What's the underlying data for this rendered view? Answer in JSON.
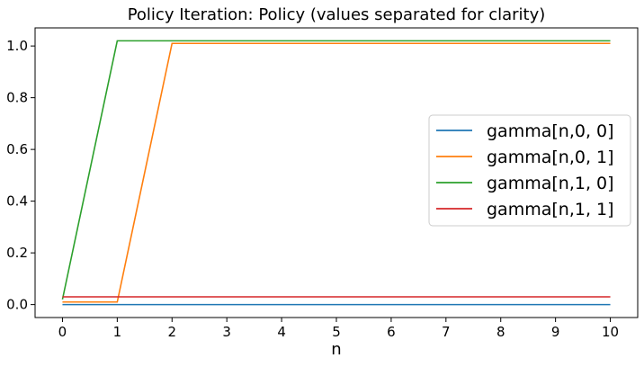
{
  "chart_data": {
    "type": "line",
    "title": "Policy Iteration: Policy (values separated for clarity)",
    "xlabel": "n",
    "ylabel": "",
    "xlim": [
      -0.5,
      10.5
    ],
    "ylim": [
      -0.05,
      1.07
    ],
    "xticks": [
      0,
      1,
      2,
      3,
      4,
      5,
      6,
      7,
      8,
      9,
      10
    ],
    "yticks": [
      0.0,
      0.2,
      0.4,
      0.6,
      0.8,
      1.0
    ],
    "ytick_labels": [
      "0.0",
      "0.2",
      "0.4",
      "0.6",
      "0.8",
      "1.0"
    ],
    "grid": false,
    "legend_position": "center-right",
    "x": [
      0,
      1,
      2,
      3,
      4,
      5,
      6,
      7,
      8,
      9,
      10
    ],
    "series": [
      {
        "name": "gamma[n,0, 0]",
        "color": "#1f77b4",
        "values": [
          0.0,
          0.0,
          0.0,
          0.0,
          0.0,
          0.0,
          0.0,
          0.0,
          0.0,
          0.0,
          0.0
        ]
      },
      {
        "name": "gamma[n,0, 1]",
        "color": "#ff7f0e",
        "values": [
          0.01,
          0.01,
          1.01,
          1.01,
          1.01,
          1.01,
          1.01,
          1.01,
          1.01,
          1.01,
          1.01
        ]
      },
      {
        "name": "gamma[n,1, 0]",
        "color": "#2ca02c",
        "values": [
          0.02,
          1.02,
          1.02,
          1.02,
          1.02,
          1.02,
          1.02,
          1.02,
          1.02,
          1.02,
          1.02
        ]
      },
      {
        "name": "gamma[n,1, 1]",
        "color": "#d62728",
        "values": [
          0.03,
          0.03,
          0.03,
          0.03,
          0.03,
          0.03,
          0.03,
          0.03,
          0.03,
          0.03,
          0.03
        ]
      }
    ]
  }
}
